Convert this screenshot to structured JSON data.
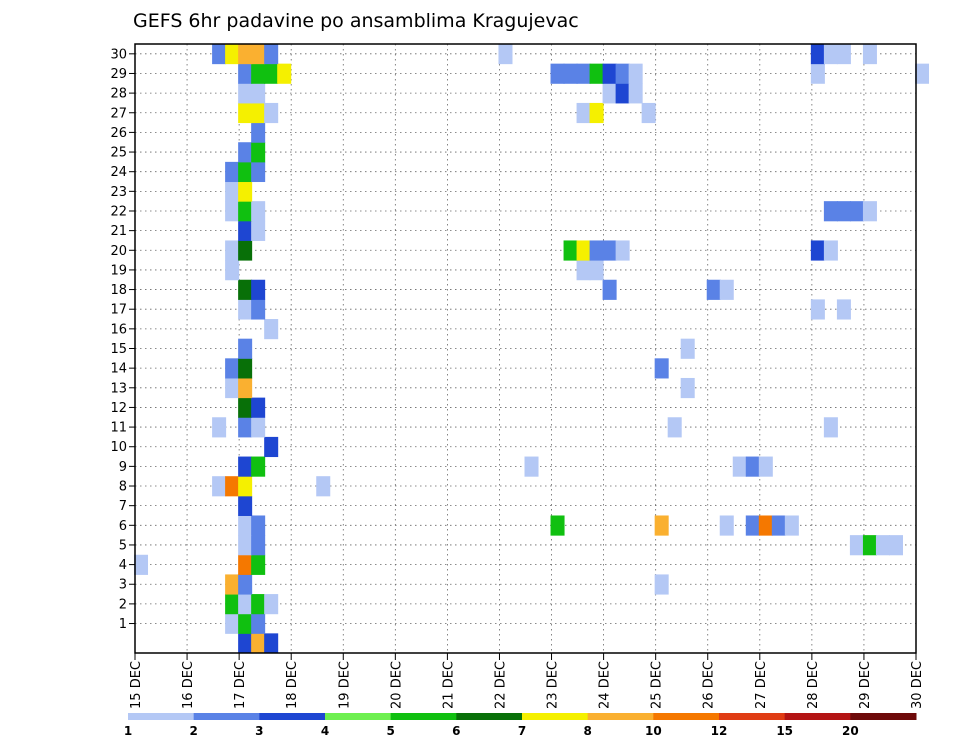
{
  "chart_data": {
    "type": "heatmap",
    "title": "GEFS 6hr padavine po ansamblima Kragujevac",
    "x_tick_labels": [
      "15 DEC",
      "16 DEC",
      "17 DEC",
      "18 DEC",
      "19 DEC",
      "20 DEC",
      "21 DEC",
      "22 DEC",
      "23 DEC",
      "24 DEC",
      "25 DEC",
      "26 DEC",
      "27 DEC",
      "28 DEC",
      "29 DEC",
      "30 DEC"
    ],
    "y_tick_labels": [
      "1",
      "2",
      "3",
      "4",
      "5",
      "6",
      "7",
      "8",
      "9",
      "10",
      "11",
      "12",
      "13",
      "14",
      "15",
      "16",
      "17",
      "18",
      "19",
      "20",
      "21",
      "22",
      "23",
      "24",
      "25",
      "26",
      "27",
      "28",
      "29",
      "30"
    ],
    "xlim_days": [
      15,
      30
    ],
    "ylim_member": [
      0,
      30
    ],
    "grid": true,
    "legend": {
      "placement": "bottom",
      "labels": [
        "1",
        "2",
        "3",
        "4",
        "5",
        "6",
        "7",
        "8",
        "10",
        "12",
        "15",
        "20"
      ],
      "colors": [
        "#b4c8f5",
        "#5a82e6",
        "#1e46d2",
        "#6ef050",
        "#10c010",
        "#087008",
        "#f5f000",
        "#fab030",
        "#f57800",
        "#e03c14",
        "#b41414",
        "#6e0a0a"
      ]
    },
    "cells": [
      {
        "m": 0,
        "day": 17.0,
        "v": 3
      },
      {
        "m": 0,
        "day": 17.25,
        "v": 8
      },
      {
        "m": 0,
        "day": 17.5,
        "v": 3
      },
      {
        "m": 1,
        "day": 16.75,
        "v": 1
      },
      {
        "m": 1,
        "day": 17.0,
        "v": 5
      },
      {
        "m": 1,
        "day": 17.25,
        "v": 2
      },
      {
        "m": 2,
        "day": 16.75,
        "v": 5
      },
      {
        "m": 2,
        "day": 17.0,
        "v": 1
      },
      {
        "m": 2,
        "day": 17.25,
        "v": 5
      },
      {
        "m": 2,
        "day": 17.5,
        "v": 1
      },
      {
        "m": 3,
        "day": 16.75,
        "v": 8
      },
      {
        "m": 3,
        "day": 17.0,
        "v": 2
      },
      {
        "m": 3,
        "day": 25.0,
        "v": 1
      },
      {
        "m": 4,
        "day": 15.0,
        "v": 1
      },
      {
        "m": 4,
        "day": 17.0,
        "v": 10
      },
      {
        "m": 4,
        "day": 17.25,
        "v": 5
      },
      {
        "m": 5,
        "day": 17.0,
        "v": 1
      },
      {
        "m": 5,
        "day": 17.25,
        "v": 2
      },
      {
        "m": 5,
        "day": 28.75,
        "v": 1
      },
      {
        "m": 5,
        "day": 29.0,
        "v": 5
      },
      {
        "m": 5,
        "day": 29.25,
        "v": 1
      },
      {
        "m": 5,
        "day": 29.5,
        "v": 1
      },
      {
        "m": 6,
        "day": 17.0,
        "v": 1
      },
      {
        "m": 6,
        "day": 17.25,
        "v": 2
      },
      {
        "m": 6,
        "day": 23.0,
        "v": 5
      },
      {
        "m": 6,
        "day": 25.0,
        "v": 8
      },
      {
        "m": 6,
        "day": 26.25,
        "v": 1
      },
      {
        "m": 6,
        "day": 26.75,
        "v": 2
      },
      {
        "m": 6,
        "day": 27.0,
        "v": 10
      },
      {
        "m": 6,
        "day": 27.25,
        "v": 2
      },
      {
        "m": 6,
        "day": 27.5,
        "v": 1
      },
      {
        "m": 7,
        "day": 17.0,
        "v": 3
      },
      {
        "m": 8,
        "day": 16.5,
        "v": 1
      },
      {
        "m": 8,
        "day": 16.75,
        "v": 10
      },
      {
        "m": 8,
        "day": 17.0,
        "v": 7
      },
      {
        "m": 8,
        "day": 18.5,
        "v": 1
      },
      {
        "m": 9,
        "day": 17.0,
        "v": 3
      },
      {
        "m": 9,
        "day": 17.25,
        "v": 5
      },
      {
        "m": 9,
        "day": 22.5,
        "v": 1
      },
      {
        "m": 9,
        "day": 26.5,
        "v": 1
      },
      {
        "m": 9,
        "day": 26.75,
        "v": 2
      },
      {
        "m": 9,
        "day": 27.0,
        "v": 1
      },
      {
        "m": 10,
        "day": 17.5,
        "v": 3
      },
      {
        "m": 11,
        "day": 16.5,
        "v": 1
      },
      {
        "m": 11,
        "day": 17.0,
        "v": 2
      },
      {
        "m": 11,
        "day": 17.25,
        "v": 1
      },
      {
        "m": 11,
        "day": 25.25,
        "v": 1
      },
      {
        "m": 11,
        "day": 28.25,
        "v": 1
      },
      {
        "m": 12,
        "day": 17.0,
        "v": 6
      },
      {
        "m": 12,
        "day": 17.25,
        "v": 3
      },
      {
        "m": 13,
        "day": 16.75,
        "v": 1
      },
      {
        "m": 13,
        "day": 17.0,
        "v": 8
      },
      {
        "m": 13,
        "day": 25.5,
        "v": 1
      },
      {
        "m": 14,
        "day": 16.75,
        "v": 2
      },
      {
        "m": 14,
        "day": 17.0,
        "v": 6
      },
      {
        "m": 14,
        "day": 25.0,
        "v": 2
      },
      {
        "m": 15,
        "day": 17.0,
        "v": 2
      },
      {
        "m": 15,
        "day": 25.5,
        "v": 1
      },
      {
        "m": 16,
        "day": 17.5,
        "v": 1
      },
      {
        "m": 17,
        "day": 17.0,
        "v": 1
      },
      {
        "m": 17,
        "day": 17.25,
        "v": 2
      },
      {
        "m": 17,
        "day": 28.0,
        "v": 1
      },
      {
        "m": 17,
        "day": 28.5,
        "v": 1
      },
      {
        "m": 18,
        "day": 17.0,
        "v": 6
      },
      {
        "m": 18,
        "day": 17.25,
        "v": 3
      },
      {
        "m": 18,
        "day": 24.0,
        "v": 2
      },
      {
        "m": 18,
        "day": 26.0,
        "v": 2
      },
      {
        "m": 18,
        "day": 26.25,
        "v": 1
      },
      {
        "m": 19,
        "day": 16.75,
        "v": 1
      },
      {
        "m": 19,
        "day": 23.5,
        "v": 1
      },
      {
        "m": 19,
        "day": 23.75,
        "v": 1
      },
      {
        "m": 20,
        "day": 16.75,
        "v": 1
      },
      {
        "m": 20,
        "day": 17.0,
        "v": 6
      },
      {
        "m": 20,
        "day": 23.25,
        "v": 5
      },
      {
        "m": 20,
        "day": 23.5,
        "v": 7
      },
      {
        "m": 20,
        "day": 23.75,
        "v": 2
      },
      {
        "m": 20,
        "day": 24.0,
        "v": 2
      },
      {
        "m": 20,
        "day": 24.25,
        "v": 1
      },
      {
        "m": 20,
        "day": 28.0,
        "v": 3
      },
      {
        "m": 20,
        "day": 28.25,
        "v": 1
      },
      {
        "m": 21,
        "day": 17.0,
        "v": 3
      },
      {
        "m": 21,
        "day": 17.25,
        "v": 1
      },
      {
        "m": 22,
        "day": 16.75,
        "v": 1
      },
      {
        "m": 22,
        "day": 17.0,
        "v": 5
      },
      {
        "m": 22,
        "day": 17.25,
        "v": 1
      },
      {
        "m": 22,
        "day": 28.25,
        "v": 2
      },
      {
        "m": 22,
        "day": 28.5,
        "v": 2
      },
      {
        "m": 22,
        "day": 28.75,
        "v": 2
      },
      {
        "m": 22,
        "day": 29.0,
        "v": 1
      },
      {
        "m": 23,
        "day": 16.75,
        "v": 1
      },
      {
        "m": 23,
        "day": 17.0,
        "v": 7
      },
      {
        "m": 24,
        "day": 16.75,
        "v": 2
      },
      {
        "m": 24,
        "day": 17.0,
        "v": 5
      },
      {
        "m": 24,
        "day": 17.25,
        "v": 2
      },
      {
        "m": 25,
        "day": 17.0,
        "v": 2
      },
      {
        "m": 25,
        "day": 17.25,
        "v": 5
      },
      {
        "m": 26,
        "day": 17.25,
        "v": 2
      },
      {
        "m": 27,
        "day": 17.0,
        "v": 7
      },
      {
        "m": 27,
        "day": 17.25,
        "v": 7
      },
      {
        "m": 27,
        "day": 17.5,
        "v": 1
      },
      {
        "m": 27,
        "day": 23.5,
        "v": 1
      },
      {
        "m": 27,
        "day": 23.75,
        "v": 7
      },
      {
        "m": 27,
        "day": 24.75,
        "v": 1
      },
      {
        "m": 28,
        "day": 17.0,
        "v": 1
      },
      {
        "m": 28,
        "day": 17.25,
        "v": 1
      },
      {
        "m": 28,
        "day": 24.0,
        "v": 1
      },
      {
        "m": 28,
        "day": 24.25,
        "v": 3
      },
      {
        "m": 28,
        "day": 24.5,
        "v": 1
      },
      {
        "m": 29,
        "day": 17.0,
        "v": 2
      },
      {
        "m": 29,
        "day": 17.25,
        "v": 5
      },
      {
        "m": 29,
        "day": 17.5,
        "v": 5
      },
      {
        "m": 29,
        "day": 17.75,
        "v": 7
      },
      {
        "m": 29,
        "day": 23.0,
        "v": 2
      },
      {
        "m": 29,
        "day": 23.25,
        "v": 2
      },
      {
        "m": 29,
        "day": 23.5,
        "v": 2
      },
      {
        "m": 29,
        "day": 23.75,
        "v": 5
      },
      {
        "m": 29,
        "day": 24.0,
        "v": 3
      },
      {
        "m": 29,
        "day": 24.25,
        "v": 2
      },
      {
        "m": 29,
        "day": 24.5,
        "v": 1
      },
      {
        "m": 29,
        "day": 28.0,
        "v": 1
      },
      {
        "m": 29,
        "day": 30.0,
        "v": 1
      },
      {
        "m": 30,
        "day": 16.5,
        "v": 2
      },
      {
        "m": 30,
        "day": 16.75,
        "v": 7
      },
      {
        "m": 30,
        "day": 17.0,
        "v": 8
      },
      {
        "m": 30,
        "day": 17.25,
        "v": 8
      },
      {
        "m": 30,
        "day": 17.5,
        "v": 2
      },
      {
        "m": 30,
        "day": 22.0,
        "v": 1
      },
      {
        "m": 30,
        "day": 28.0,
        "v": 3
      },
      {
        "m": 30,
        "day": 28.25,
        "v": 1
      },
      {
        "m": 30,
        "day": 28.5,
        "v": 1
      },
      {
        "m": 30,
        "day": 29.0,
        "v": 1
      }
    ]
  }
}
